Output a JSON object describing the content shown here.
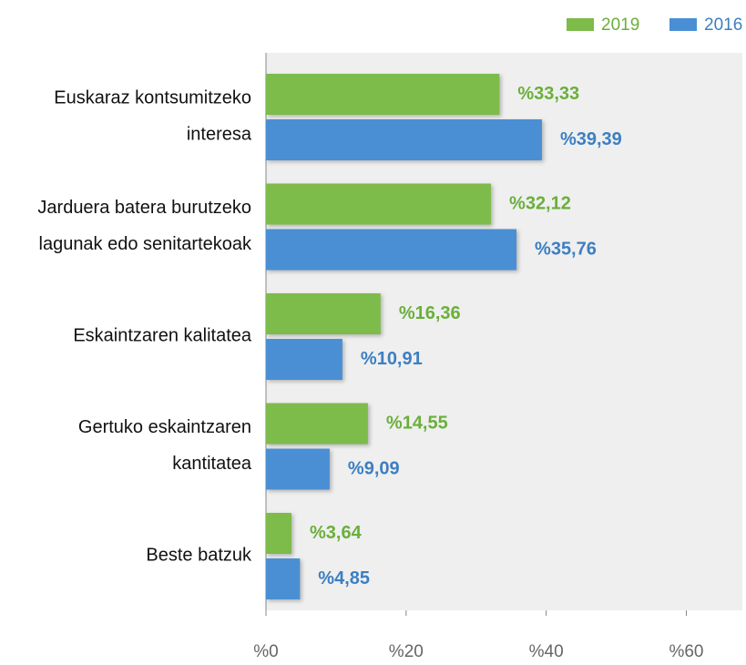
{
  "chart_data": {
    "type": "bar",
    "orientation": "horizontal",
    "categories": [
      "Euskaraz kontsumitzeko\ninteresa",
      "Jarduera batera burutzeko\nlagunak edo senitartekoak",
      "Eskaintzaren kalitatea",
      "Gertuko eskaintzaren\nkantitatea",
      "Beste batzuk"
    ],
    "series": [
      {
        "name": "2019",
        "color": "#7dbb4a",
        "label_color": "#6aaf3a",
        "values": [
          33.33,
          32.12,
          16.36,
          14.55,
          3.64
        ],
        "value_labels": [
          "%33,33",
          "%32,12",
          "%16,36",
          "%14,55",
          "%3,64"
        ]
      },
      {
        "name": "2016",
        "color": "#4a8fd4",
        "label_color": "#3c7fc2",
        "values": [
          39.39,
          35.76,
          10.91,
          9.09,
          4.85
        ],
        "value_labels": [
          "%39,39",
          "%35,76",
          "%10,91",
          "%9,09",
          "%4,85"
        ]
      }
    ],
    "xlim": [
      0,
      68
    ],
    "xticks": [
      {
        "value": 0,
        "label": "%0"
      },
      {
        "value": 20,
        "label": "%20"
      },
      {
        "value": 40,
        "label": "%40"
      },
      {
        "value": 60,
        "label": "%60"
      }
    ],
    "legend": "top-right",
    "background": "#efefef"
  }
}
